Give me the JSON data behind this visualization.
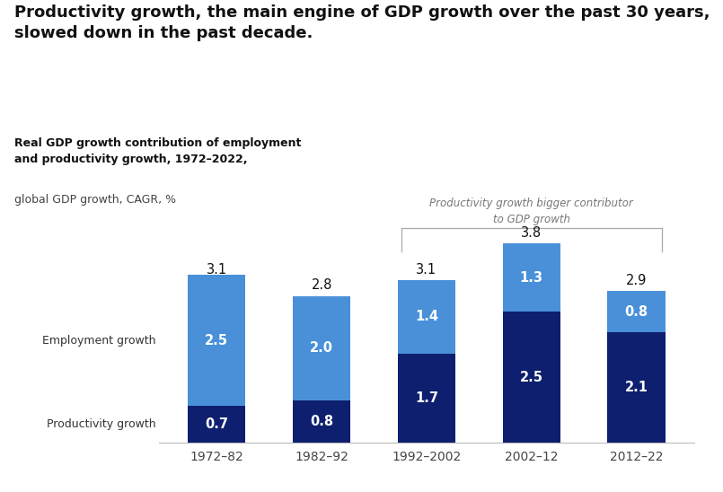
{
  "title": "Productivity growth, the main engine of GDP growth over the past 30 years,\nslowed down in the past decade.",
  "subtitle_bold": "Real GDP growth contribution of employment\nand productivity growth, 1972–2022,",
  "subtitle_light": "global GDP growth, CAGR, %",
  "annotation": "Productivity growth bigger contributor\nto GDP growth",
  "categories": [
    "1972–82",
    "1982–92",
    "1992–2002",
    "2002–12",
    "2012–22"
  ],
  "productivity": [
    0.7,
    0.8,
    1.7,
    2.5,
    2.1
  ],
  "employment": [
    2.5,
    2.0,
    1.4,
    1.3,
    0.8
  ],
  "totals": [
    3.1,
    2.8,
    3.1,
    3.8,
    2.9
  ],
  "color_productivity": "#0d1f6e",
  "color_employment": "#4a90d9",
  "background_color": "#ffffff",
  "bar_width": 0.55,
  "ylim": [
    0,
    4.5
  ]
}
